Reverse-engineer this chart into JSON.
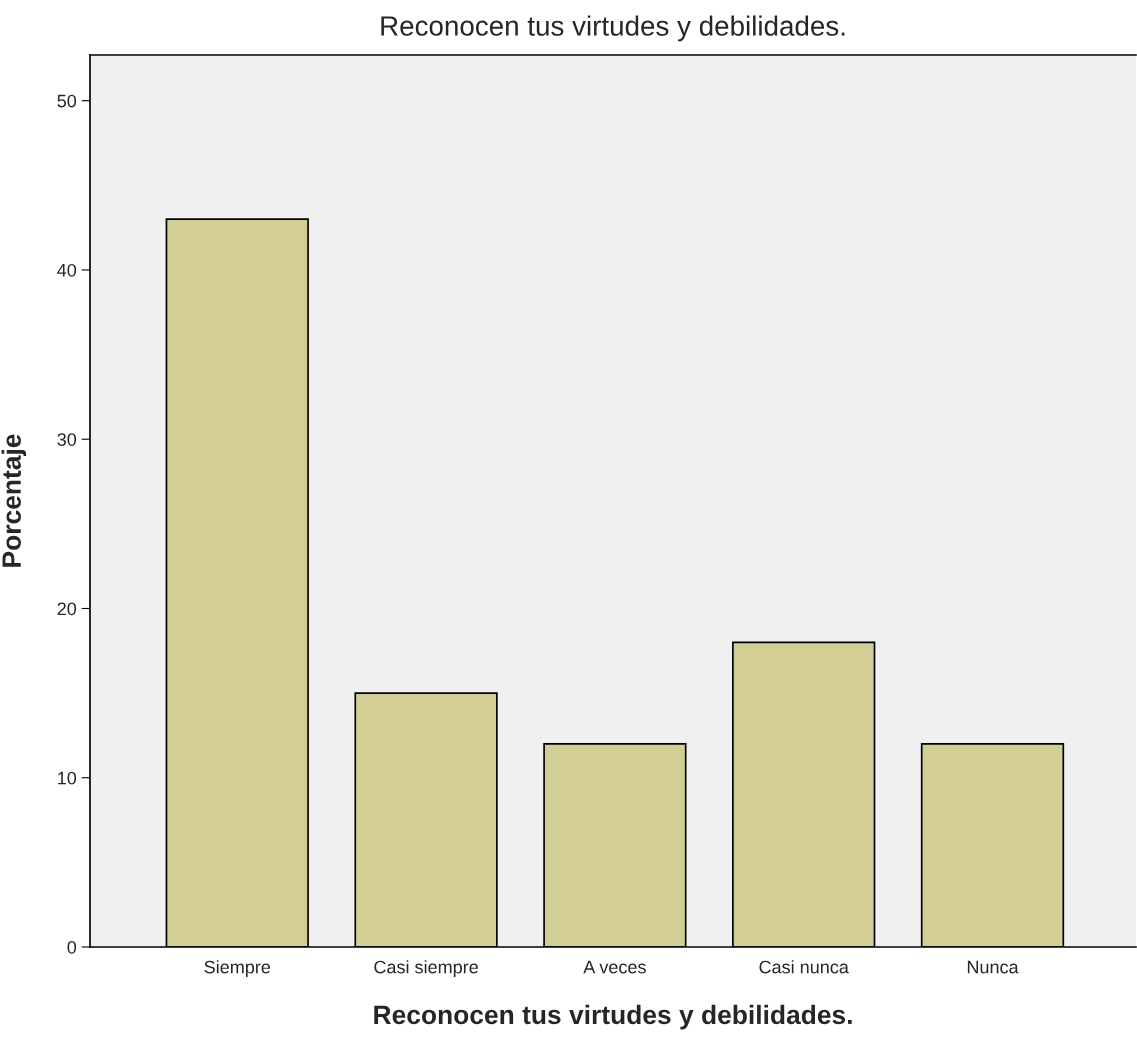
{
  "chart_data": {
    "type": "bar",
    "title": "Reconocen tus virtudes y debilidades.",
    "xlabel": "Reconocen tus virtudes y debilidades.",
    "ylabel": "Porcentaje",
    "categories": [
      "Siempre",
      "Casi siempre",
      "A veces",
      "Casi nunca",
      "Nunca"
    ],
    "values": [
      43,
      15,
      12,
      18,
      12
    ],
    "color": "#d3ce96",
    "ylim": [
      0,
      52.7
    ],
    "yticks": [
      0,
      10,
      20,
      30,
      40,
      50
    ],
    "grid": false,
    "legend": false
  }
}
